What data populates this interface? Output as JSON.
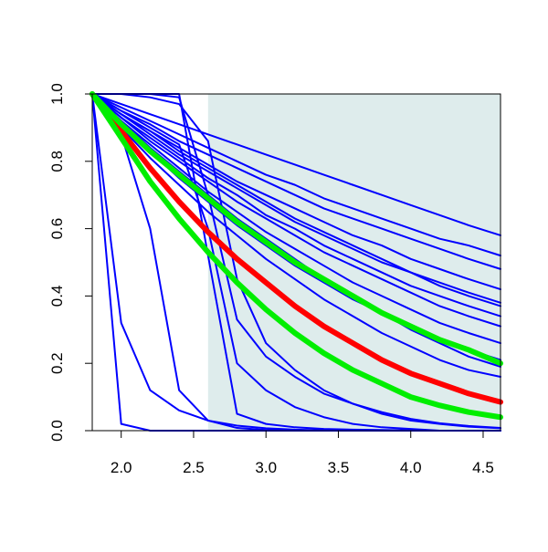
{
  "chart_data": {
    "type": "line",
    "title": "",
    "xlabel": "",
    "ylabel": "",
    "xlim": [
      1.8,
      4.62
    ],
    "ylim": [
      0.0,
      1.0
    ],
    "x_ticks": [
      2.0,
      2.5,
      3.0,
      3.5,
      4.0,
      4.5
    ],
    "x_tick_labels": [
      "2.0",
      "2.5",
      "3.0",
      "3.5",
      "4.0",
      "4.5"
    ],
    "y_ticks": [
      0.0,
      0.2,
      0.4,
      0.6,
      0.8,
      1.0
    ],
    "y_tick_labels": [
      "0.0",
      "0.2",
      "0.4",
      "0.6",
      "0.8",
      "1.0"
    ],
    "grid": false,
    "legend": "none",
    "shaded_region": {
      "x_start": 2.6,
      "x_end": 4.62,
      "color": "#deecec"
    },
    "colors": {
      "series": "#0000ff",
      "highlight": "#ff0000",
      "bounds": "#00ee00",
      "axis": "#000000"
    },
    "x": [
      1.8,
      2.0,
      2.2,
      2.4,
      2.6,
      2.8,
      3.0,
      3.2,
      3.4,
      3.6,
      3.8,
      4.0,
      4.2,
      4.4,
      4.62
    ],
    "series": [
      {
        "color": "#ff0000",
        "width": "thick",
        "values": [
          1.0,
          0.89,
          0.78,
          0.68,
          0.59,
          0.51,
          0.44,
          0.37,
          0.31,
          0.26,
          0.21,
          0.17,
          0.14,
          0.11,
          0.085
        ]
      },
      {
        "color": "#00ee00",
        "width": "thick",
        "values": [
          1.0,
          0.87,
          0.74,
          0.63,
          0.53,
          0.44,
          0.36,
          0.29,
          0.23,
          0.18,
          0.14,
          0.1,
          0.075,
          0.055,
          0.04
        ]
      },
      {
        "color": "#00ee00",
        "width": "thick",
        "values": [
          1.0,
          0.91,
          0.83,
          0.76,
          0.69,
          0.62,
          0.56,
          0.5,
          0.45,
          0.4,
          0.35,
          0.31,
          0.27,
          0.24,
          0.2
        ]
      },
      {
        "color": "#0000ff",
        "width": "thin",
        "values": [
          1.0,
          0.94,
          0.89,
          0.84,
          0.79,
          0.74,
          0.7,
          0.66,
          0.62,
          0.58,
          0.55,
          0.51,
          0.48,
          0.45,
          0.42
        ]
      },
      {
        "color": "#0000ff",
        "width": "thin",
        "values": [
          1.0,
          0.95,
          0.91,
          0.86,
          0.82,
          0.78,
          0.74,
          0.7,
          0.66,
          0.63,
          0.6,
          0.57,
          0.54,
          0.51,
          0.48
        ]
      },
      {
        "color": "#0000ff",
        "width": "thin",
        "values": [
          1.0,
          0.96,
          0.92,
          0.88,
          0.84,
          0.8,
          0.76,
          0.73,
          0.69,
          0.66,
          0.63,
          0.6,
          0.57,
          0.55,
          0.52
        ]
      },
      {
        "color": "#0000ff",
        "width": "thin",
        "values": [
          1.0,
          0.94,
          0.88,
          0.82,
          0.77,
          0.72,
          0.67,
          0.62,
          0.58,
          0.54,
          0.5,
          0.47,
          0.43,
          0.4,
          0.37
        ]
      },
      {
        "color": "#0000ff",
        "width": "thin",
        "values": [
          1.0,
          0.93,
          0.86,
          0.8,
          0.74,
          0.68,
          0.63,
          0.58,
          0.53,
          0.49,
          0.45,
          0.41,
          0.37,
          0.34,
          0.31
        ]
      },
      {
        "color": "#0000ff",
        "width": "thin",
        "values": [
          1.0,
          0.92,
          0.85,
          0.78,
          0.71,
          0.65,
          0.59,
          0.54,
          0.49,
          0.44,
          0.4,
          0.36,
          0.32,
          0.29,
          0.26
        ]
      },
      {
        "color": "#0000ff",
        "width": "thin",
        "values": [
          1.0,
          0.91,
          0.83,
          0.75,
          0.68,
          0.61,
          0.55,
          0.49,
          0.44,
          0.39,
          0.35,
          0.31,
          0.27,
          0.24,
          0.21
        ]
      },
      {
        "color": "#0000ff",
        "width": "thin",
        "values": [
          1.0,
          0.92,
          0.84,
          0.77,
          0.7,
          0.63,
          0.57,
          0.51,
          0.45,
          0.4,
          0.35,
          0.3,
          0.26,
          0.22,
          0.19
        ]
      },
      {
        "color": "#0000ff",
        "width": "thin",
        "values": [
          1.0,
          0.9,
          0.81,
          0.73,
          0.65,
          0.58,
          0.51,
          0.45,
          0.39,
          0.34,
          0.29,
          0.25,
          0.21,
          0.18,
          0.16
        ]
      },
      {
        "color": "#0000ff",
        "width": "thin",
        "values": [
          1.0,
          0.93,
          0.87,
          0.81,
          0.75,
          0.7,
          0.64,
          0.6,
          0.55,
          0.51,
          0.47,
          0.43,
          0.4,
          0.37,
          0.34
        ]
      },
      {
        "color": "#0000ff",
        "width": "thin",
        "values": [
          1.0,
          0.94,
          0.89,
          0.83,
          0.78,
          0.73,
          0.68,
          0.63,
          0.59,
          0.55,
          0.51,
          0.47,
          0.44,
          0.41,
          0.38
        ]
      },
      {
        "color": "#0000ff",
        "width": "thin",
        "values": [
          1.0,
          1.0,
          1.0,
          0.99,
          0.7,
          0.33,
          0.22,
          0.16,
          0.11,
          0.08,
          0.055,
          0.035,
          0.022,
          0.014,
          0.008
        ]
      },
      {
        "color": "#0000ff",
        "width": "thin",
        "values": [
          1.0,
          1.0,
          0.99,
          0.97,
          0.86,
          0.45,
          0.26,
          0.18,
          0.12,
          0.08,
          0.05,
          0.03,
          0.02,
          0.012,
          0.007
        ]
      },
      {
        "color": "#0000ff",
        "width": "thin",
        "values": [
          1.0,
          1.0,
          1.0,
          1.0,
          0.52,
          0.05,
          0.02,
          0.01,
          0.005,
          0.003,
          0.002,
          0.001,
          0.0,
          0.0,
          0.0
        ]
      },
      {
        "color": "#0000ff",
        "width": "thin",
        "values": [
          1.0,
          0.95,
          0.9,
          0.85,
          0.6,
          0.2,
          0.12,
          0.07,
          0.04,
          0.02,
          0.01,
          0.005,
          0.0,
          0.0,
          0.0
        ]
      },
      {
        "color": "#0000ff",
        "width": "thin",
        "values": [
          1.0,
          0.32,
          0.12,
          0.06,
          0.03,
          0.015,
          0.007,
          0.003,
          0.001,
          0.0,
          0.0,
          0.0,
          0.0,
          0.0,
          0.0
        ]
      },
      {
        "color": "#0000ff",
        "width": "thin",
        "values": [
          1.0,
          0.88,
          0.6,
          0.12,
          0.03,
          0.008,
          0.002,
          0.0,
          0.0,
          0.0,
          0.0,
          0.0,
          0.0,
          0.0,
          0.0
        ]
      },
      {
        "color": "#0000ff",
        "width": "thin",
        "values": [
          1.0,
          0.02,
          0.0,
          0.0,
          0.0,
          0.0,
          0.0,
          0.0,
          0.0,
          0.0,
          0.0,
          0.0,
          0.0,
          0.0,
          0.0
        ]
      },
      {
        "color": "#0000ff",
        "width": "thin",
        "values": [
          1.0,
          0.97,
          0.94,
          0.91,
          0.88,
          0.85,
          0.82,
          0.79,
          0.76,
          0.73,
          0.7,
          0.67,
          0.64,
          0.61,
          0.58
        ]
      }
    ]
  }
}
